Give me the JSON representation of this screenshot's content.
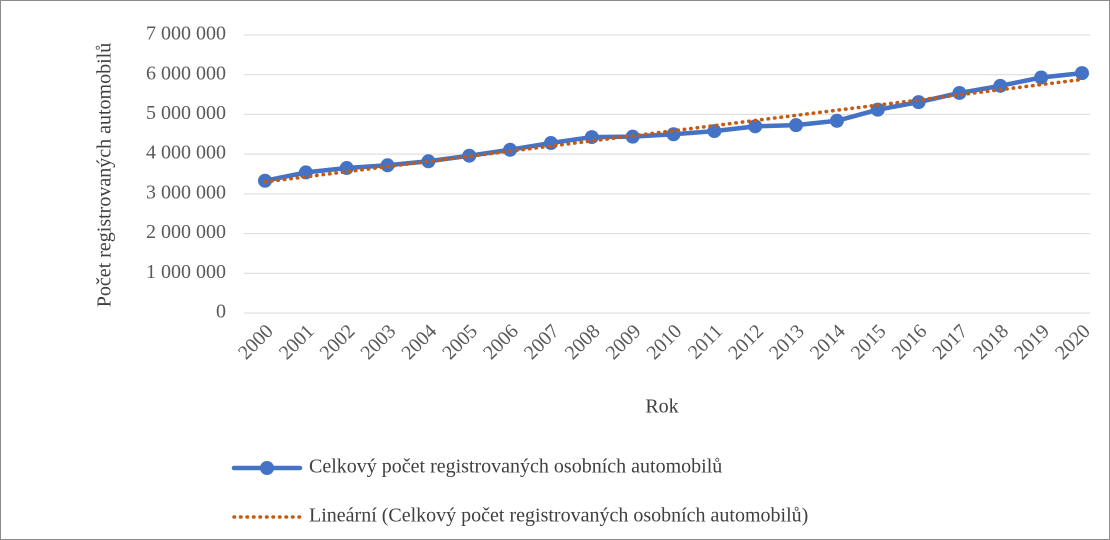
{
  "chart_data": {
    "type": "line",
    "x_label": "Rok",
    "y_label": "Počet registrovaných automobilů",
    "categories": [
      "2000",
      "2001",
      "2002",
      "2003",
      "2004",
      "2005",
      "2006",
      "2007",
      "2008",
      "2009",
      "2010",
      "2011",
      "2012",
      "2013",
      "2014",
      "2015",
      "2016",
      "2017",
      "2018",
      "2019",
      "2020"
    ],
    "series": [
      {
        "name": "Celkový počet registrovaných osobních automobilů",
        "color": "#4472c4",
        "style": "solid-markers",
        "values": [
          3330000,
          3540000,
          3650000,
          3720000,
          3820000,
          3960000,
          4110000,
          4280000,
          4430000,
          4440000,
          4500000,
          4580000,
          4700000,
          4730000,
          4840000,
          5120000,
          5310000,
          5540000,
          5720000,
          5930000,
          6040000
        ]
      },
      {
        "name": "Lineární (Celkový počet registrovaných osobních automobilů)",
        "color": "#c55a11",
        "style": "dotted",
        "values": [
          3300000,
          3429000,
          3558000,
          3687000,
          3816000,
          3945000,
          4074000,
          4203000,
          4332000,
          4461000,
          4590000,
          4719000,
          4848000,
          4977000,
          5106000,
          5235000,
          5364000,
          5493000,
          5622000,
          5751000,
          5880000
        ]
      }
    ],
    "ylim": [
      0,
      7000000
    ],
    "yticks": [
      0,
      {
        "value": 1000000,
        "label": "1 000 000"
      },
      {
        "value": 2000000,
        "label": "2 000 000"
      },
      {
        "value": 3000000,
        "label": "3 000 000"
      },
      {
        "value": 4000000,
        "label": "4 000 000"
      },
      {
        "value": 5000000,
        "label": "5 000 000"
      },
      {
        "value": 6000000,
        "label": "6 000 000"
      },
      {
        "value": 7000000,
        "label": "7 000 000"
      }
    ],
    "grid": true,
    "legend": "bottom"
  }
}
